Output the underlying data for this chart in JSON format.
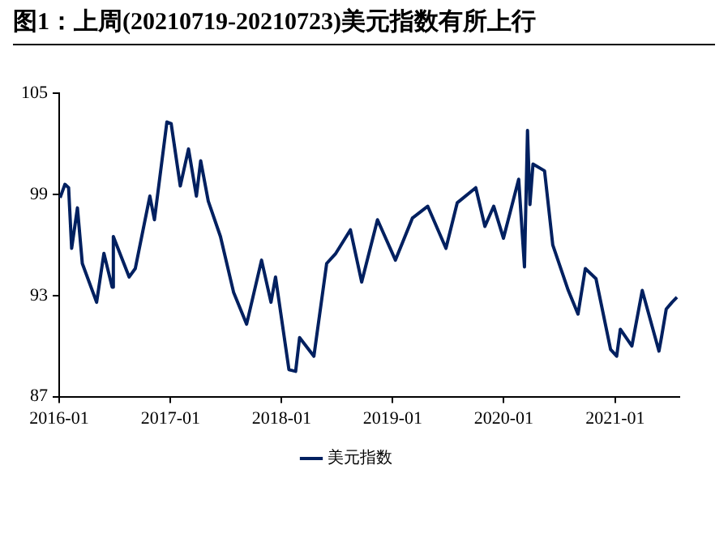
{
  "chart_data": {
    "type": "line",
    "title": "图1：上周(20210719-20210723)美元指数有所上行",
    "x": [
      "2016-01-04",
      "2016-01-20",
      "2016-02-01",
      "2016-02-11",
      "2016-03-01",
      "2016-03-17",
      "2016-05-03",
      "2016-05-27",
      "2016-06-23",
      "2016-06-27",
      "2016-08-18",
      "2016-09-07",
      "2016-10-25",
      "2016-11-09",
      "2016-12-20",
      "2017-01-03",
      "2017-02-02",
      "2017-03-01",
      "2017-03-27",
      "2017-04-10",
      "2017-05-05",
      "2017-06-14",
      "2017-07-27",
      "2017-09-08",
      "2017-10-27",
      "2017-11-27",
      "2017-12-12",
      "2018-01-25",
      "2018-02-16",
      "2018-03-01",
      "2018-04-17",
      "2018-05-29",
      "2018-06-28",
      "2018-08-15",
      "2018-09-21",
      "2018-11-12",
      "2019-01-10",
      "2019-03-07",
      "2019-04-26",
      "2019-06-25",
      "2019-08-01",
      "2019-10-01",
      "2019-10-31",
      "2019-11-29",
      "2019-12-31",
      "2020-02-19",
      "2020-03-09",
      "2020-03-19",
      "2020-03-27",
      "2020-04-06",
      "2020-05-14",
      "2020-06-10",
      "2020-07-31",
      "2020-09-01",
      "2020-09-25",
      "2020-10-30",
      "2020-12-17",
      "2021-01-06",
      "2021-01-18",
      "2021-02-25",
      "2021-03-31",
      "2021-05-25",
      "2021-06-02",
      "2021-06-18",
      "2021-07-07",
      "2021-07-23"
    ],
    "series": [
      {
        "name": "美元指数",
        "color": "#002060",
        "values": [
          98.8,
          99.6,
          99.4,
          95.8,
          98.2,
          94.9,
          92.6,
          95.5,
          93.5,
          96.5,
          94.1,
          94.6,
          98.9,
          97.5,
          103.3,
          103.2,
          99.5,
          101.7,
          98.9,
          101.0,
          98.6,
          96.5,
          93.2,
          91.3,
          95.1,
          92.6,
          94.1,
          88.6,
          88.5,
          90.5,
          89.4,
          94.9,
          95.5,
          96.9,
          93.8,
          97.5,
          95.1,
          97.6,
          98.3,
          95.8,
          98.5,
          99.4,
          97.1,
          98.3,
          96.4,
          99.9,
          94.7,
          102.8,
          98.4,
          100.8,
          100.4,
          96.0,
          93.3,
          91.9,
          94.6,
          94.0,
          89.8,
          89.4,
          91.0,
          90.0,
          93.3,
          89.7,
          90.5,
          92.2,
          92.6,
          92.9
        ]
      }
    ],
    "xlim": [
      "2016-01-01",
      "2021-07-31"
    ],
    "xticks": [
      "2016-01",
      "2017-01",
      "2018-01",
      "2019-01",
      "2020-01",
      "2021-01"
    ],
    "ylim": [
      87,
      105
    ],
    "yticks": [
      87,
      93,
      99,
      105
    ],
    "grid": false,
    "legend": "bottom",
    "marker": "none",
    "line_style": "solid"
  }
}
